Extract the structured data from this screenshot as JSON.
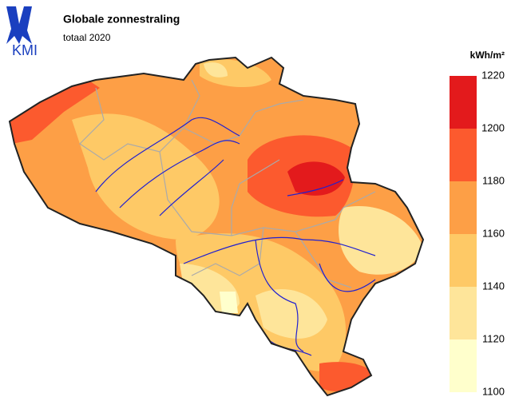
{
  "header": {
    "logo": "KMI",
    "title": "Globale zonnestraling",
    "subtitle": "totaal 2020"
  },
  "legend": {
    "unit": "kWh/m²",
    "ticks": [
      1100,
      1120,
      1140,
      1160,
      1180,
      1200,
      1220
    ],
    "colors": [
      "#ffffcc",
      "#fee59a",
      "#fec966",
      "#fd9f46",
      "#fc5a2e",
      "#e31a1c"
    ]
  }
}
